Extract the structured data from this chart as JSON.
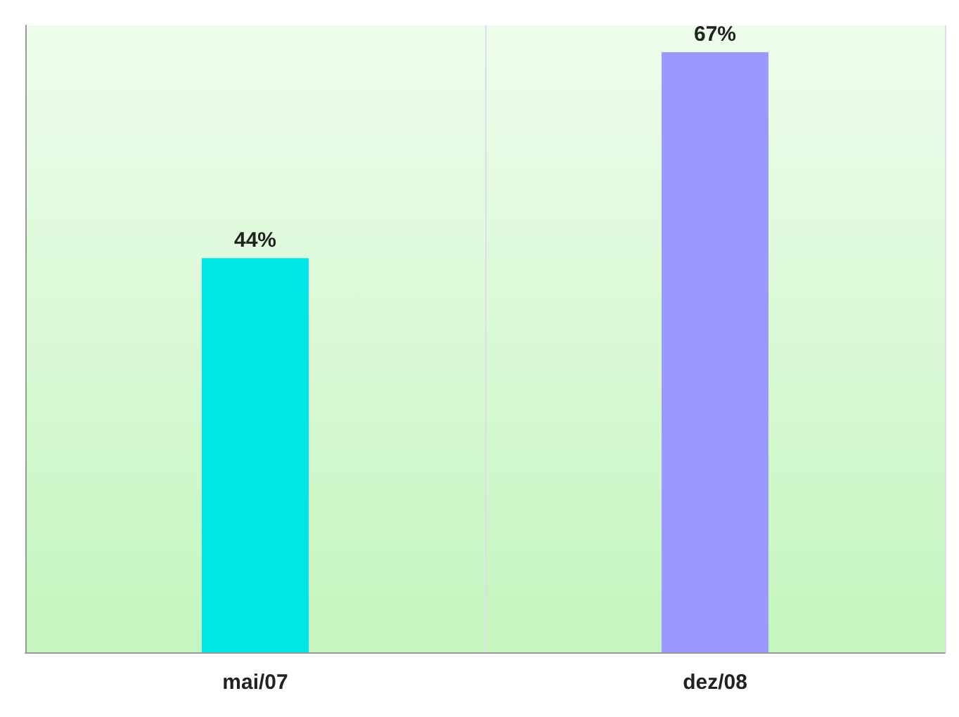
{
  "chart_data": {
    "type": "bar",
    "relative": false,
    "categories": [
      "mai/07",
      "dez/08"
    ],
    "values": [
      44,
      67
    ],
    "colors": [
      "#00e5e5",
      "#9999ff"
    ],
    "value_labels": [
      "44%",
      "67%"
    ],
    "grid": false
  }
}
